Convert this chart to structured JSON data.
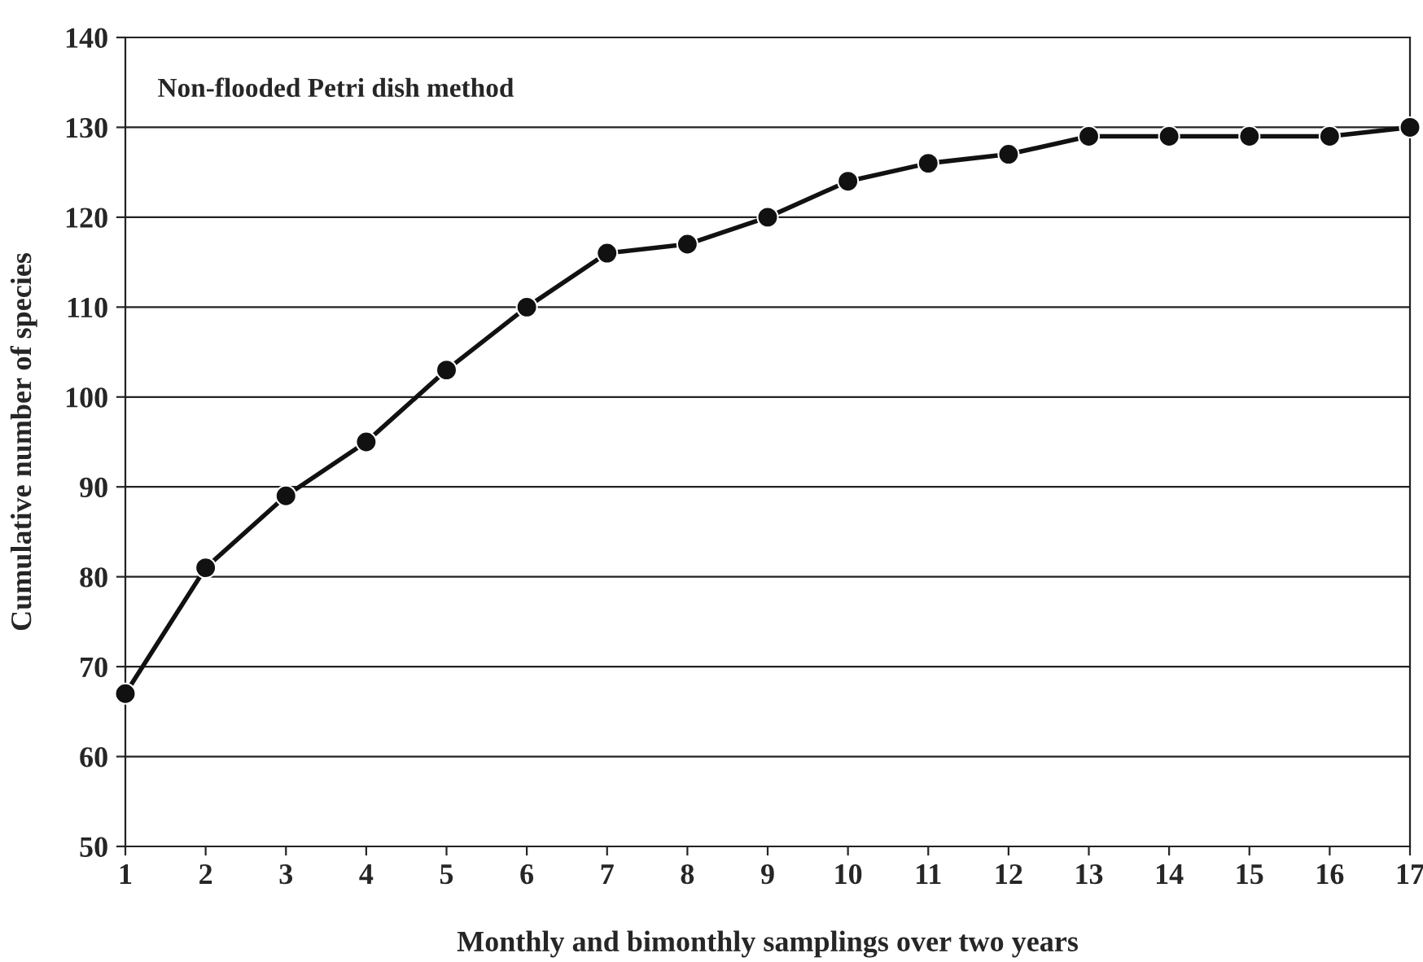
{
  "chart_data": {
    "type": "line",
    "xlabel": "Monthly and bimonthly samplings over two years",
    "ylabel": "Cumulative number of species",
    "annotations": [
      "Non-flooded Petri dish method"
    ],
    "x": [
      1,
      2,
      3,
      4,
      5,
      6,
      7,
      8,
      9,
      10,
      11,
      12,
      13,
      14,
      15,
      16,
      17
    ],
    "series": [
      {
        "color": "#111111",
        "values": [
          67,
          81,
          89,
          95,
          103,
          110,
          116,
          117,
          120,
          124,
          126,
          127,
          129,
          129,
          129,
          129,
          130
        ]
      }
    ],
    "xlim": [
      1,
      17
    ],
    "xticks": [
      1,
      2,
      3,
      4,
      5,
      6,
      7,
      8,
      9,
      10,
      11,
      12,
      13,
      14,
      15,
      16,
      17
    ],
    "ylim": [
      50,
      140
    ],
    "yticks": [
      50,
      60,
      70,
      80,
      90,
      100,
      110,
      120,
      130,
      140
    ],
    "grid": "y",
    "marker": "circle",
    "line_style": "solid",
    "legend": false
  }
}
